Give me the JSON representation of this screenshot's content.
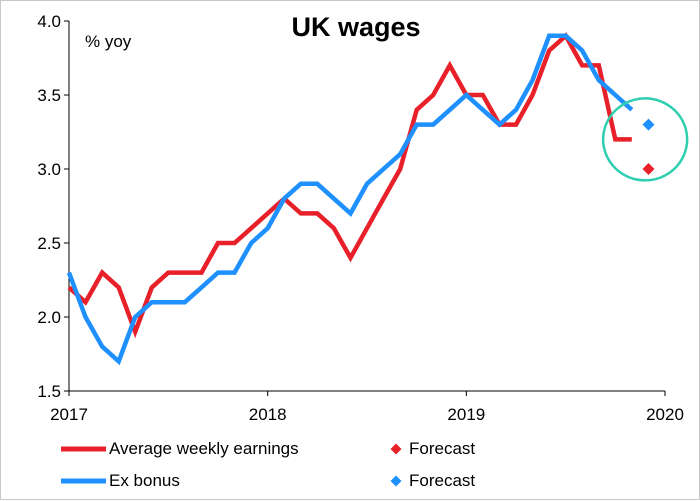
{
  "chart_data": {
    "type": "line",
    "title": "UK wages",
    "ylabel": "% yoy",
    "xlabel": "",
    "xlim": [
      2017,
      2020
    ],
    "ylim": [
      1.5,
      4.0
    ],
    "x_ticks": [
      2017,
      2018,
      2019,
      2020
    ],
    "x_tick_labels": [
      "2017",
      "2018",
      "2019",
      "2020"
    ],
    "y_ticks": [
      1.5,
      2.0,
      2.5,
      3.0,
      3.5,
      4.0
    ],
    "y_tick_labels": [
      "1.5",
      "2.0",
      "2.5",
      "3.0",
      "3.5",
      "4.0"
    ],
    "grid": false,
    "legend_position": "bottom",
    "series": [
      {
        "name": "Average weekly earnings",
        "color": "#e8202a",
        "style": "line",
        "x": [
          2017.0,
          2017.083,
          2017.167,
          2017.25,
          2017.333,
          2017.417,
          2017.5,
          2017.583,
          2017.667,
          2017.75,
          2017.833,
          2017.917,
          2018.0,
          2018.083,
          2018.167,
          2018.25,
          2018.333,
          2018.417,
          2018.5,
          2018.583,
          2018.667,
          2018.75,
          2018.833,
          2018.917,
          2019.0,
          2019.083,
          2019.167,
          2019.25,
          2019.333,
          2019.417,
          2019.5,
          2019.583,
          2019.667,
          2019.75,
          2019.833
        ],
        "values": [
          2.2,
          2.1,
          2.3,
          2.2,
          1.9,
          2.2,
          2.3,
          2.3,
          2.3,
          2.5,
          2.5,
          2.6,
          2.7,
          2.8,
          2.7,
          2.7,
          2.6,
          2.4,
          2.6,
          2.8,
          3.0,
          3.4,
          3.5,
          3.7,
          3.5,
          3.5,
          3.3,
          3.3,
          3.5,
          3.8,
          3.9,
          3.7,
          3.7,
          3.2,
          3.2
        ]
      },
      {
        "name": "Ex bonus",
        "color": "#1e90ff",
        "style": "line",
        "x": [
          2017.0,
          2017.083,
          2017.167,
          2017.25,
          2017.333,
          2017.417,
          2017.5,
          2017.583,
          2017.667,
          2017.75,
          2017.833,
          2017.917,
          2018.0,
          2018.083,
          2018.167,
          2018.25,
          2018.333,
          2018.417,
          2018.5,
          2018.583,
          2018.667,
          2018.75,
          2018.833,
          2018.917,
          2019.0,
          2019.083,
          2019.167,
          2019.25,
          2019.333,
          2019.417,
          2019.5,
          2019.583,
          2019.667,
          2019.75,
          2019.833
        ],
        "values": [
          2.3,
          2.0,
          1.8,
          1.7,
          2.0,
          2.1,
          2.1,
          2.1,
          2.2,
          2.3,
          2.3,
          2.5,
          2.6,
          2.8,
          2.9,
          2.9,
          2.8,
          2.7,
          2.9,
          3.0,
          3.1,
          3.3,
          3.3,
          3.4,
          3.5,
          3.4,
          3.3,
          3.4,
          3.6,
          3.9,
          3.9,
          3.8,
          3.6,
          3.5,
          3.4
        ]
      },
      {
        "name": "Forecast",
        "color": "#e8202a",
        "style": "marker",
        "marker": "diamond",
        "x": [
          2019.917
        ],
        "values": [
          3.0
        ]
      },
      {
        "name": "Forecast",
        "color": "#1e90ff",
        "style": "marker",
        "marker": "diamond",
        "x": [
          2019.917
        ],
        "values": [
          3.3
        ]
      }
    ],
    "annotations": [
      {
        "type": "ellipse",
        "color": "#2ecfb0",
        "center_x": 2019.9,
        "center_y": 3.2
      }
    ]
  }
}
